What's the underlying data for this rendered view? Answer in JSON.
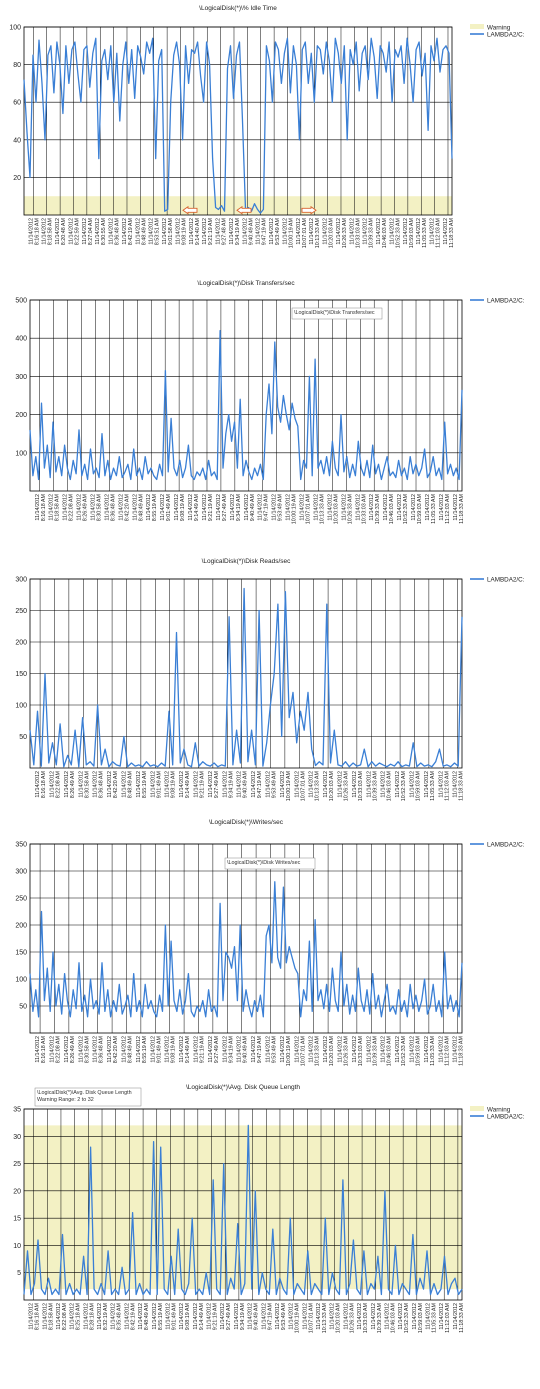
{
  "colors": {
    "series": "#3a7fd5",
    "warning_band": "#f3f1c4",
    "grid": "#000000",
    "arrow": "#d9622b"
  },
  "chart_data": [
    {
      "type": "line",
      "title": "\\LogicalDisk(*)\\% Idle Time",
      "ylim": [
        0,
        100
      ],
      "yticks": [
        20,
        40,
        60,
        80,
        100
      ],
      "warning_band": [
        0,
        10
      ],
      "legend": [
        {
          "name": "Warning",
          "kind": "warning",
          "color": "#f3f1c4"
        },
        {
          "name": "LAMBDA2/C:",
          "kind": "line",
          "color": "#3a7fd5"
        }
      ],
      "xticks_date": "11/14/2012",
      "xticks": [
        "8:16:18 AM",
        "8:18:58 AM",
        "8:20:48 AM",
        "8:22:59 AM",
        "8:27:04 AM",
        "8:30:55 AM",
        "8:36:48 AM",
        "8:42:19 AM",
        "8:48:49 AM",
        "8:53:51 AM",
        "9:01:58 AM",
        "9:08:19 AM",
        "9:14:40 AM",
        "9:21:19 AM",
        "9:27:48 AM",
        "9:34:19 AM",
        "9:40:49 AM",
        "9:47:19 AM",
        "9:53:49 AM",
        "10:00:19 AM",
        "10:07:01 AM",
        "10:13:33 AM",
        "10:20:03 AM",
        "10:26:33 AM",
        "10:33:03 AM",
        "10:39:33 AM",
        "10:46:03 AM",
        "10:52:33 AM",
        "10:59:03 AM",
        "11:05:33 AM",
        "11:12:03 AM",
        "11:18:33 AM"
      ],
      "series": [
        {
          "name": "LAMBDA2/C:",
          "values": [
            72,
            44,
            20,
            85,
            60,
            93,
            70,
            40,
            85,
            90,
            65,
            92,
            80,
            54,
            90,
            70,
            88,
            92,
            75,
            60,
            88,
            90,
            68,
            86,
            94,
            30,
            82,
            88,
            72,
            90,
            60,
            86,
            50,
            80,
            92,
            70,
            88,
            62,
            90,
            84,
            75,
            92,
            86,
            94,
            30,
            82,
            88,
            2,
            3,
            60,
            85,
            92,
            80,
            40,
            90,
            70,
            88,
            86,
            92,
            74,
            60,
            92,
            80,
            30,
            4,
            3,
            5,
            2,
            78,
            90,
            62,
            85,
            92,
            50,
            3,
            4,
            2,
            6,
            3,
            1,
            3,
            90,
            82,
            60,
            92,
            88,
            70,
            86,
            94,
            65,
            90,
            80,
            40,
            88,
            92,
            70,
            86,
            60,
            90,
            88,
            75,
            92,
            82,
            60,
            94,
            86,
            70,
            90,
            40,
            88,
            80,
            92,
            66,
            86,
            90,
            72,
            94,
            84,
            62,
            90,
            86,
            76,
            92,
            60,
            88,
            84,
            90,
            70,
            94,
            80,
            60,
            88,
            92,
            74,
            86,
            45,
            90,
            82,
            94,
            76,
            88,
            90,
            86,
            30
          ]
        }
      ],
      "arrows": [
        "left",
        "left",
        "right"
      ]
    },
    {
      "type": "line",
      "title": "\\LogicalDisk(*)\\Disk Transfers/sec",
      "ylim": [
        0,
        500
      ],
      "yticks": [
        100,
        200,
        300,
        400,
        500
      ],
      "legend": [
        {
          "name": "LAMBDA2/C:",
          "kind": "line",
          "color": "#3a7fd5"
        }
      ],
      "tooltip": "\\LogicalDisk(*)\\Disk Transfers/sec",
      "xticks_date": "11/14/2012",
      "xticks": [
        "8:16:18 AM",
        "8:18:58 AM",
        "8:22:08 AM",
        "8:26:49 AM",
        "8:30:58 AM",
        "8:36:48 AM",
        "8:42:20 AM",
        "8:48:49 AM",
        "8:55:19 AM",
        "9:01:49 AM",
        "9:08:19 AM",
        "9:14:49 AM",
        "9:21:19 AM",
        "9:27:49 AM",
        "9:34:19 AM",
        "9:40:49 AM",
        "9:47:19 AM",
        "9:53:49 AM",
        "10:00:19 AM",
        "10:07:01 AM",
        "10:13:33 AM",
        "10:20:03 AM",
        "10:26:33 AM",
        "10:33:03 AM",
        "10:39:33 AM",
        "10:46:03 AM",
        "10:52:33 AM",
        "10:59:03 AM",
        "11:05:33 AM",
        "11:12:03 AM",
        "11:18:33 AM"
      ],
      "series": [
        {
          "name": "LAMBDA2/C:",
          "values": [
            160,
            40,
            90,
            30,
            230,
            60,
            120,
            35,
            180,
            50,
            90,
            40,
            120,
            60,
            30,
            80,
            45,
            160,
            40,
            70,
            30,
            110,
            45,
            60,
            35,
            150,
            40,
            80,
            30,
            60,
            40,
            90,
            35,
            50,
            70,
            30,
            110,
            40,
            60,
            30,
            90,
            45,
            60,
            40,
            30,
            70,
            40,
            315,
            50,
            190,
            60,
            40,
            80,
            35,
            60,
            120,
            40,
            30,
            50,
            40,
            60,
            30,
            80,
            40,
            50,
            30,
            420,
            60,
            150,
            200,
            130,
            180,
            60,
            240,
            40,
            80,
            50,
            30,
            60,
            40,
            70,
            30,
            200,
            280,
            150,
            390,
            220,
            180,
            250,
            200,
            160,
            230,
            190,
            170,
            30,
            80,
            60,
            300,
            40,
            345,
            60,
            80,
            45,
            90,
            40,
            130,
            60,
            40,
            200,
            50,
            90,
            35,
            70,
            40,
            130,
            60,
            40,
            80,
            35,
            120,
            45,
            70,
            30,
            60,
            90,
            40,
            50,
            35,
            80,
            40,
            60,
            30,
            90,
            45,
            70,
            40,
            60,
            110,
            35,
            50,
            90,
            40,
            60,
            30,
            180,
            45,
            70,
            40,
            60,
            30,
            265
          ]
        }
      ]
    },
    {
      "type": "line",
      "title": "\\LogicalDisk(*)\\Disk Reads/sec",
      "ylim": [
        0,
        300
      ],
      "yticks": [
        50,
        100,
        150,
        200,
        250,
        300
      ],
      "legend": [
        {
          "name": "LAMBDA2/C:",
          "kind": "line",
          "color": "#3a7fd5"
        }
      ],
      "xticks_date": "11/14/2012",
      "xticks": [
        "8:16:18 AM",
        "8:22:08 AM",
        "8:26:49 AM",
        "8:30:58 AM",
        "8:36:48 AM",
        "8:42:20 AM",
        "8:48:49 AM",
        "8:55:19 AM",
        "9:01:49 AM",
        "9:08:19 AM",
        "9:14:49 AM",
        "9:21:19 AM",
        "9:27:49 AM",
        "9:34:19 AM",
        "9:40:49 AM",
        "9:47:19 AM",
        "9:53:49 AM",
        "10:00:19 AM",
        "10:07:01 AM",
        "10:13:33 AM",
        "10:20:03 AM",
        "10:26:33 AM",
        "10:33:03 AM",
        "10:39:33 AM",
        "10:46:03 AM",
        "10:52:33 AM",
        "10:59:03 AM",
        "11:05:33 AM",
        "11:12:03 AM",
        "11:18:33 AM"
      ],
      "series": [
        {
          "name": "LAMBDA2/C:",
          "values": [
            60,
            5,
            90,
            3,
            150,
            8,
            40,
            5,
            70,
            2,
            20,
            5,
            60,
            2,
            80,
            5,
            10,
            3,
            100,
            5,
            30,
            2,
            10,
            5,
            3,
            50,
            2,
            8,
            3,
            5,
            2,
            10,
            3,
            5,
            2,
            8,
            3,
            90,
            5,
            215,
            8,
            30,
            5,
            2,
            40,
            3,
            10,
            5,
            3,
            8,
            2,
            5,
            3,
            240,
            5,
            60,
            8,
            285,
            10,
            60,
            5,
            250,
            3,
            40,
            100,
            150,
            260,
            50,
            280,
            80,
            120,
            40,
            90,
            60,
            120,
            30,
            4,
            10,
            5,
            260,
            8,
            60,
            5,
            3,
            10,
            2,
            8,
            3,
            5,
            30,
            2,
            10,
            3,
            8,
            5,
            2,
            6,
            3,
            10,
            2,
            5,
            3,
            40,
            2,
            8,
            3,
            5,
            2,
            10,
            30,
            3,
            5,
            2,
            8,
            3,
            240
          ]
        }
      ]
    },
    {
      "type": "line",
      "title": "\\LogicalDisk(*)\\Writes/sec",
      "ylim": [
        0,
        350
      ],
      "yticks": [
        50,
        100,
        150,
        200,
        250,
        300,
        350
      ],
      "legend": [
        {
          "name": "LAMBDA2/C:",
          "kind": "line",
          "color": "#3a7fd5"
        }
      ],
      "tooltip": "\\LogicalDisk(*)\\Disk Writes/sec",
      "xticks_date": "11/14/2012",
      "xticks": [
        "8:16:18 AM",
        "8:22:08 AM",
        "8:26:49 AM",
        "8:30:58 AM",
        "8:36:48 AM",
        "8:42:20 AM",
        "8:48:49 AM",
        "8:55:19 AM",
        "9:01:49 AM",
        "9:08:19 AM",
        "9:14:49 AM",
        "9:21:19 AM",
        "9:27:49 AM",
        "9:34:19 AM",
        "9:40:49 AM",
        "9:47:19 AM",
        "9:53:49 AM",
        "10:00:19 AM",
        "10:07:01 AM",
        "10:13:33 AM",
        "10:20:03 AM",
        "10:26:33 AM",
        "10:33:03 AM",
        "10:39:33 AM",
        "10:46:03 AM",
        "10:52:33 AM",
        "10:59:03 AM",
        "11:05:33 AM",
        "11:12:03 AM",
        "11:18:33 AM"
      ],
      "series": [
        {
          "name": "LAMBDA2/C:",
          "values": [
            110,
            40,
            80,
            30,
            225,
            60,
            120,
            40,
            150,
            50,
            90,
            35,
            110,
            60,
            30,
            80,
            45,
            130,
            40,
            70,
            30,
            100,
            45,
            60,
            35,
            130,
            40,
            80,
            30,
            60,
            40,
            90,
            35,
            50,
            70,
            30,
            110,
            40,
            60,
            30,
            90,
            45,
            60,
            40,
            30,
            70,
            40,
            200,
            50,
            170,
            60,
            40,
            80,
            35,
            60,
            110,
            40,
            30,
            50,
            40,
            60,
            30,
            80,
            40,
            50,
            30,
            240,
            60,
            150,
            140,
            120,
            160,
            60,
            200,
            40,
            80,
            50,
            30,
            60,
            40,
            70,
            30,
            180,
            200,
            130,
            280,
            140,
            120,
            270,
            130,
            160,
            140,
            120,
            110,
            30,
            80,
            60,
            170,
            40,
            210,
            60,
            80,
            45,
            90,
            40,
            120,
            60,
            40,
            150,
            50,
            90,
            35,
            70,
            40,
            120,
            60,
            40,
            80,
            35,
            110,
            45,
            70,
            30,
            60,
            90,
            40,
            50,
            35,
            80,
            40,
            60,
            30,
            90,
            45,
            70,
            40,
            60,
            100,
            35,
            50,
            90,
            40,
            60,
            30,
            150,
            45,
            70,
            40,
            60,
            30,
            130
          ]
        }
      ]
    },
    {
      "type": "line",
      "title": "\\LogicalDisk(*)\\Avg. Disk Queue Length",
      "ylim": [
        0,
        35
      ],
      "yticks": [
        5,
        10,
        15,
        20,
        25,
        30,
        35
      ],
      "warning_band": [
        2,
        32
      ],
      "legend": [
        {
          "name": "Warning",
          "kind": "warning",
          "color": "#f3f1c4"
        },
        {
          "name": "LAMBDA2/C:",
          "kind": "line",
          "color": "#3a7fd5"
        }
      ],
      "tooltip": [
        "\\LogicalDisk(*)\\Avg. Disk Queue Length",
        "Warning Range: 2 to 32"
      ],
      "xticks_date": "11/14/2012",
      "xticks": [
        "8:16:18 AM",
        "8:18:58 AM",
        "8:22:08 AM",
        "8:25:18 AM",
        "8:28:18 AM",
        "8:32:19 AM",
        "8:35:48 AM",
        "8:42:19 AM",
        "8:48:49 AM",
        "8:55:19 AM",
        "9:01:49 AM",
        "9:08:19 AM",
        "9:14:49 AM",
        "9:21:19 AM",
        "9:27:49 AM",
        "9:34:19 AM",
        "9:40:49 AM",
        "9:47:19 AM",
        "9:53:49 AM",
        "10:00:19 AM",
        "10:07:01 AM",
        "10:13:33 AM",
        "10:20:03 AM",
        "10:26:33 AM",
        "10:33:03 AM",
        "10:39:33 AM",
        "10:46:03 AM",
        "10:52:33 AM",
        "10:59:03 AM",
        "11:05:33 AM",
        "11:12:03 AM",
        "11:18:33 AM"
      ],
      "series": [
        {
          "name": "LAMBDA2/C:",
          "values": [
            1,
            9,
            1,
            3,
            11,
            2,
            1,
            4,
            1,
            2,
            1,
            12,
            1,
            3,
            1,
            2,
            1,
            8,
            1,
            28,
            2,
            1,
            3,
            1,
            9,
            1,
            2,
            1,
            6,
            1,
            2,
            16,
            1,
            3,
            1,
            2,
            1,
            29,
            1,
            28,
            2,
            1,
            8,
            1,
            13,
            2,
            1,
            3,
            15,
            1,
            2,
            1,
            5,
            1,
            22,
            2,
            1,
            25,
            1,
            4,
            2,
            14,
            1,
            3,
            32,
            2,
            20,
            1,
            5,
            2,
            1,
            13,
            1,
            4,
            2,
            1,
            15,
            1,
            3,
            2,
            1,
            9,
            1,
            3,
            2,
            1,
            15,
            1,
            5,
            2,
            1,
            22,
            1,
            3,
            11,
            2,
            1,
            9,
            1,
            3,
            2,
            8,
            1,
            20,
            2,
            1,
            10,
            1,
            3,
            2,
            1,
            12,
            1,
            4,
            2,
            9,
            1,
            3,
            1,
            2,
            8,
            1,
            3,
            4,
            1,
            2
          ]
        }
      ]
    }
  ]
}
